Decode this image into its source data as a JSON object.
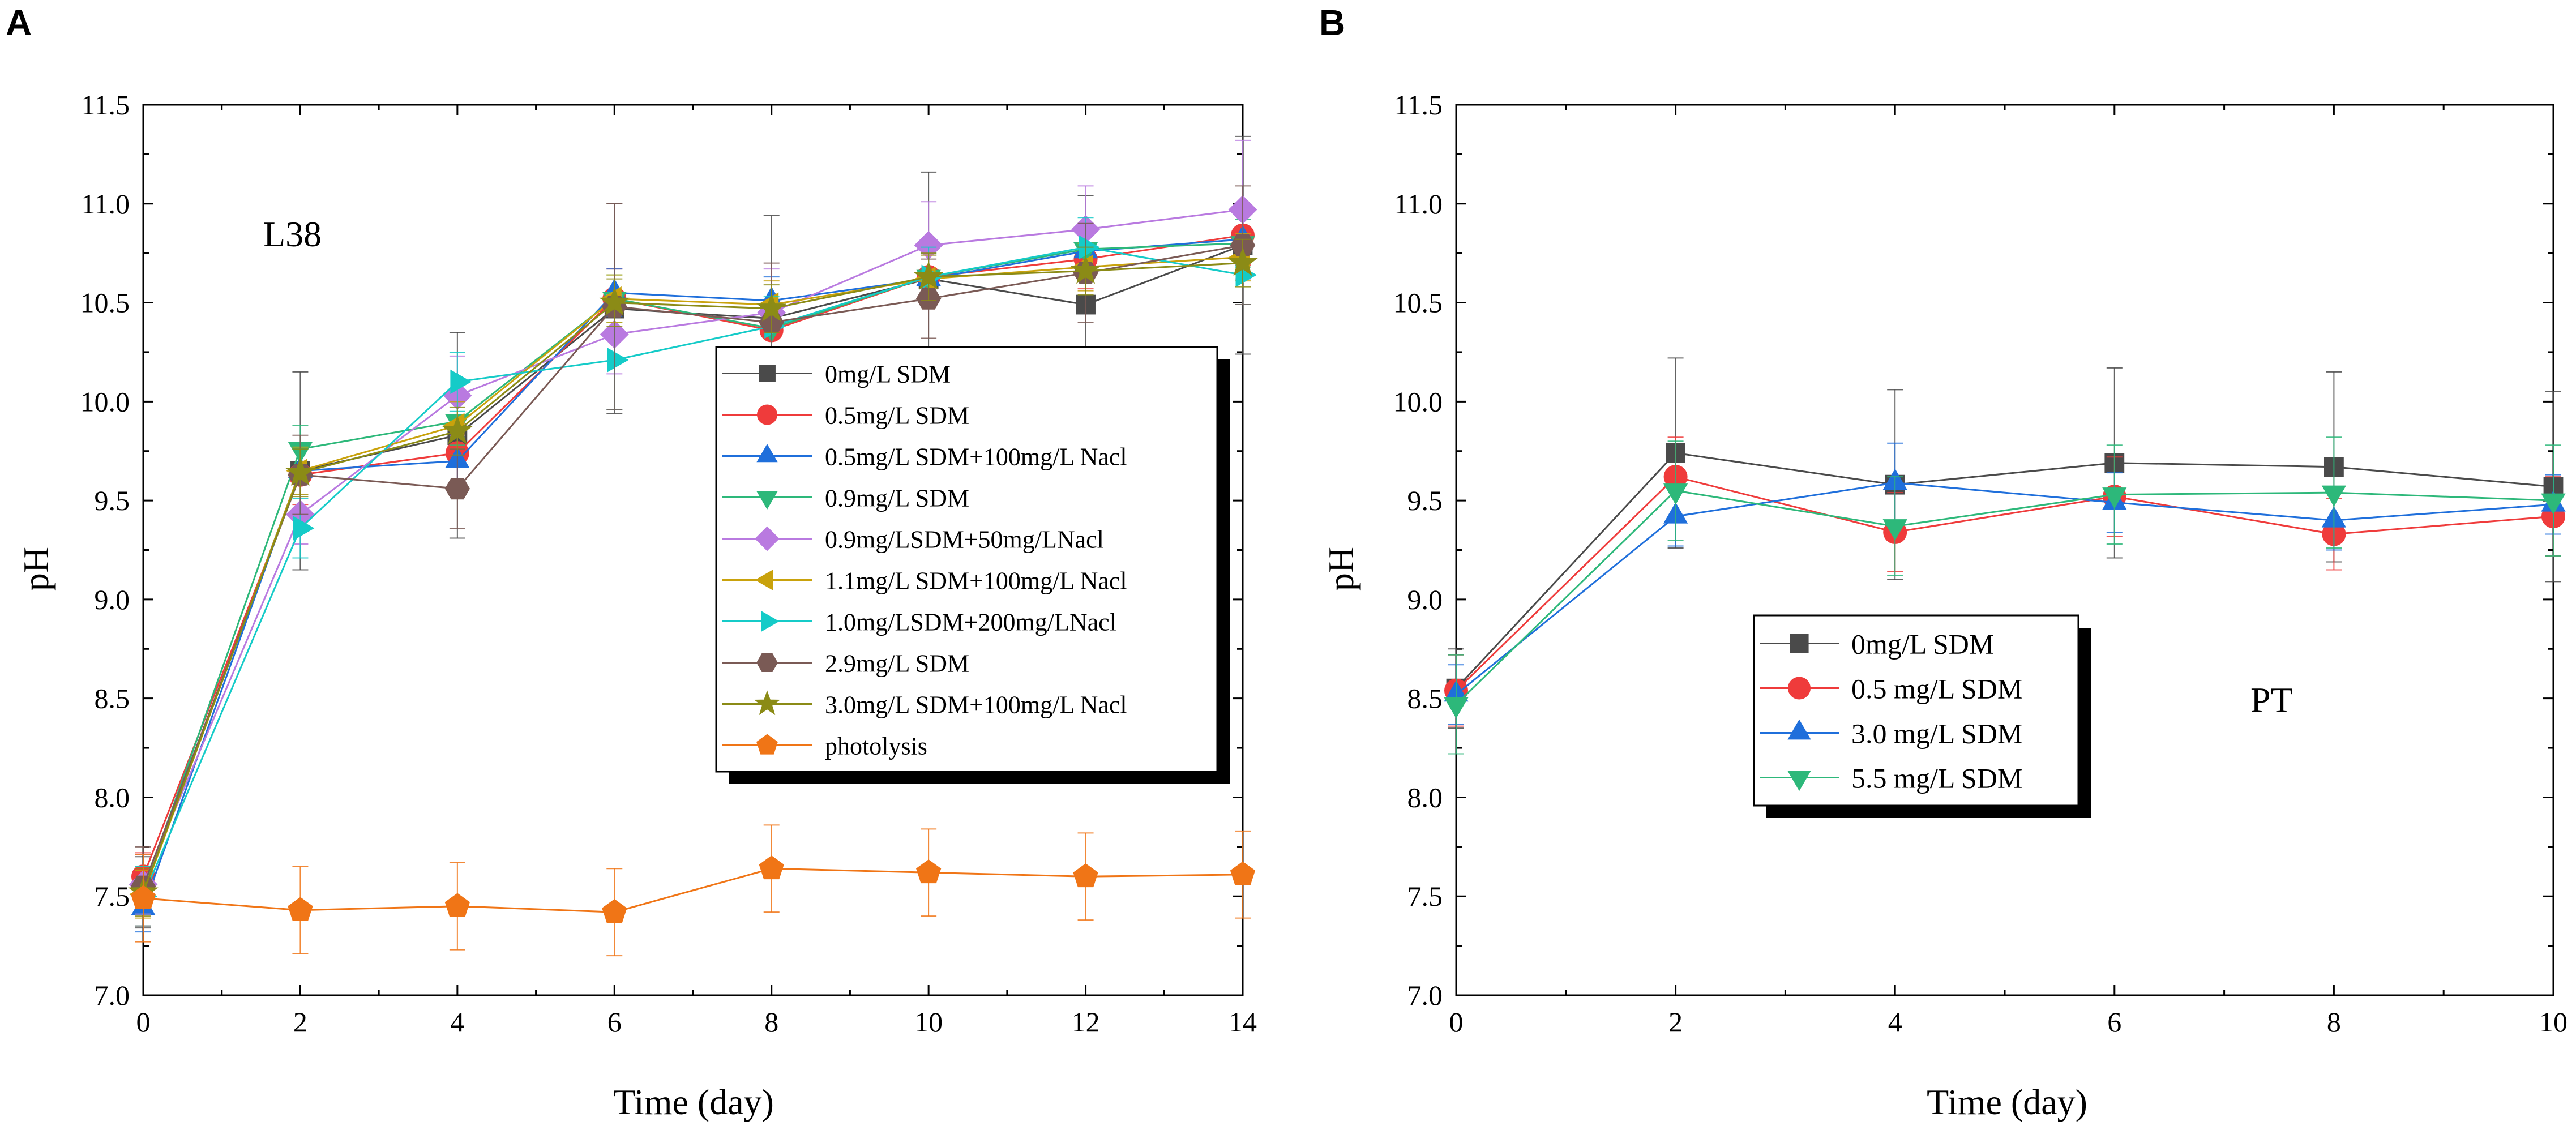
{
  "chart_data": [
    {
      "panel": "A",
      "type": "line",
      "annotation": "L38",
      "xlabel": "Time (day)",
      "ylabel": "pH",
      "xlim": [
        0,
        14
      ],
      "ylim": [
        7.0,
        11.5
      ],
      "xticks": [
        0,
        2,
        4,
        6,
        8,
        10,
        12,
        14
      ],
      "yticks": [
        "7.0",
        "7.5",
        "8.0",
        "8.5",
        "9.0",
        "9.5",
        "10.0",
        "10.5",
        "11.0",
        "11.5"
      ],
      "grid": false,
      "legend_position": "center-right",
      "x": [
        0,
        2,
        4,
        6,
        8,
        10,
        12,
        14
      ],
      "series": [
        {
          "name": "0mg/L SDM",
          "marker": "square",
          "color": "#4a4a4a",
          "values": [
            7.52,
            9.65,
            9.83,
            10.47,
            10.42,
            10.62,
            10.49,
            10.79
          ],
          "err": [
            0.18,
            0.5,
            0.52,
            0.53,
            0.52,
            0.54,
            0.55,
            0.55
          ]
        },
        {
          "name": "0.5mg/L SDM",
          "marker": "circle",
          "color": "#ef3b3b",
          "values": [
            7.6,
            9.63,
            9.74,
            10.52,
            10.36,
            10.63,
            10.72,
            10.84
          ],
          "err": [
            0.12,
            0.15,
            0.15,
            0.15,
            0.15,
            0.15,
            0.15,
            0.15
          ]
        },
        {
          "name": "0.5mg/L SDM+100mg/L Nacl",
          "marker": "triangle-up",
          "color": "#1f6fdb",
          "values": [
            7.44,
            9.65,
            9.7,
            10.55,
            10.51,
            10.62,
            10.76,
            10.82
          ],
          "err": [
            0.12,
            0.12,
            0.12,
            0.12,
            0.12,
            0.12,
            0.12,
            0.12
          ]
        },
        {
          "name": "0.9mg/L SDM",
          "marker": "triangle-down",
          "color": "#2db87a",
          "values": [
            7.53,
            9.76,
            9.9,
            10.52,
            10.37,
            10.63,
            10.77,
            10.8
          ],
          "err": [
            0.12,
            0.12,
            0.12,
            0.12,
            0.12,
            0.12,
            0.12,
            0.12
          ]
        },
        {
          "name": "0.9mg/LSDM+50mg/LNacl",
          "marker": "diamond",
          "color": "#b97ae0",
          "values": [
            7.56,
            9.43,
            10.03,
            10.34,
            10.45,
            10.79,
            10.87,
            10.97
          ],
          "err": [
            0.15,
            0.15,
            0.2,
            0.2,
            0.22,
            0.22,
            0.22,
            0.35
          ]
        },
        {
          "name": "1.1mg/L SDM+100mg/L Nacl",
          "marker": "triangle-left",
          "color": "#c9a20c",
          "values": [
            7.51,
            9.65,
            9.88,
            10.52,
            10.49,
            10.62,
            10.68,
            10.73
          ],
          "err": [
            0.12,
            0.12,
            0.12,
            0.12,
            0.12,
            0.12,
            0.12,
            0.12
          ]
        },
        {
          "name": "1.0mg/LSDM+200mg/LNacl",
          "marker": "triangle-right",
          "color": "#15cbc8",
          "values": [
            7.5,
            9.36,
            10.1,
            10.21,
            10.38,
            10.63,
            10.78,
            10.64
          ],
          "err": [
            0.15,
            0.15,
            0.15,
            0.25,
            0.15,
            0.15,
            0.15,
            0.15
          ]
        },
        {
          "name": "2.9mg/L SDM",
          "marker": "hexagon",
          "color": "#7a5a55",
          "values": [
            7.55,
            9.63,
            9.56,
            10.48,
            10.4,
            10.52,
            10.65,
            10.79
          ],
          "err": [
            0.2,
            0.2,
            0.2,
            0.52,
            0.3,
            0.2,
            0.25,
            0.3
          ]
        },
        {
          "name": "3.0mg/L SDM+100mg/L Nacl",
          "marker": "star",
          "color": "#8b8b16",
          "values": [
            7.52,
            9.64,
            9.85,
            10.5,
            10.47,
            10.63,
            10.66,
            10.7
          ],
          "err": [
            0.12,
            0.12,
            0.12,
            0.12,
            0.12,
            0.12,
            0.12,
            0.12
          ]
        },
        {
          "name": "photolysis",
          "marker": "pentagon",
          "color": "#f07516",
          "values": [
            7.49,
            7.43,
            7.45,
            7.42,
            7.64,
            7.62,
            7.6,
            7.61
          ],
          "err": [
            0.22,
            0.22,
            0.22,
            0.22,
            0.22,
            0.22,
            0.22,
            0.22
          ]
        }
      ]
    },
    {
      "panel": "B",
      "type": "line",
      "annotation": "PT",
      "xlabel": "Time (day)",
      "ylabel": "pH",
      "xlim": [
        0,
        10
      ],
      "ylim": [
        7.0,
        11.5
      ],
      "xticks": [
        0,
        2,
        4,
        6,
        8,
        10
      ],
      "yticks": [
        "7.0",
        "7.5",
        "8.0",
        "8.5",
        "9.0",
        "9.5",
        "10.0",
        "10.5",
        "11.0",
        "11.5"
      ],
      "grid": false,
      "legend_position": "center",
      "x": [
        0,
        2,
        4,
        6,
        8,
        10
      ],
      "series": [
        {
          "name": "0mg/L SDM",
          "marker": "square",
          "color": "#4a4a4a",
          "values": [
            8.55,
            9.74,
            9.58,
            9.69,
            9.67,
            9.57
          ],
          "err": [
            0.2,
            0.48,
            0.48,
            0.48,
            0.48,
            0.48
          ]
        },
        {
          "name": "0.5 mg/L SDM",
          "marker": "circle",
          "color": "#ef3b3b",
          "values": [
            8.54,
            9.62,
            9.34,
            9.52,
            9.33,
            9.42
          ],
          "err": [
            0.18,
            0.2,
            0.2,
            0.2,
            0.18,
            0.2
          ]
        },
        {
          "name": "3.0 mg/L SDM",
          "marker": "triangle-up",
          "color": "#1f6fdb",
          "values": [
            8.52,
            9.42,
            9.59,
            9.49,
            9.4,
            9.48
          ],
          "err": [
            0.15,
            0.15,
            0.2,
            0.15,
            0.15,
            0.15
          ]
        },
        {
          "name": "5.5 mg/L SDM",
          "marker": "triangle-down",
          "color": "#2db87a",
          "values": [
            8.47,
            9.55,
            9.37,
            9.53,
            9.54,
            9.5
          ],
          "err": [
            0.25,
            0.25,
            0.25,
            0.25,
            0.28,
            0.28
          ]
        }
      ]
    }
  ]
}
